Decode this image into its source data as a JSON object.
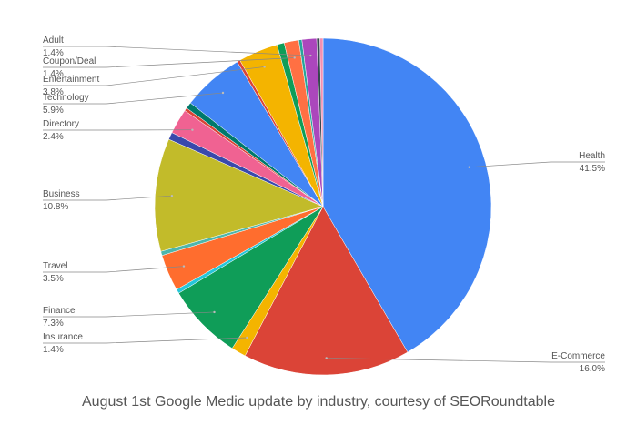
{
  "chart_data": {
    "type": "pie",
    "caption": "August 1st Google Medic update by industry, courtesy of SEORoundtable",
    "categories": [
      "Health",
      "E-Commerce",
      "Insurance",
      "Finance",
      null,
      "Travel",
      null,
      "Business",
      null,
      "Directory",
      null,
      null,
      "Technology",
      null,
      "Entertainment",
      null,
      "Coupon/Deal",
      null,
      "Adult",
      null,
      null
    ],
    "values": [
      41.5,
      16.0,
      1.4,
      7.3,
      0.4,
      3.5,
      0.4,
      10.8,
      0.7,
      2.4,
      0.3,
      0.6,
      5.9,
      0.3,
      3.8,
      0.7,
      1.4,
      0.3,
      1.4,
      0.3,
      0.3
    ],
    "value_labels": [
      "41.5%",
      "16.0%",
      "1.4%",
      "7.3%",
      null,
      "3.5%",
      null,
      "10.8%",
      null,
      "2.4%",
      null,
      null,
      "5.9%",
      null,
      "3.8%",
      null,
      "1.4%",
      null,
      "1.4%",
      null,
      null
    ],
    "colors": [
      "#4285f4",
      "#db4437",
      "#f4b400",
      "#0f9d58",
      "#26c6da",
      "#ff6d2e",
      "#4db6ac",
      "#c2bb2a",
      "#3949ab",
      "#f06292",
      "#db4437",
      "#00796b",
      "#4285f4",
      "#db4437",
      "#f4b400",
      "#0f9d58",
      "#ff7043",
      "#26a69a",
      "#ab47bc",
      "#37474f",
      "#f48fb1"
    ]
  }
}
